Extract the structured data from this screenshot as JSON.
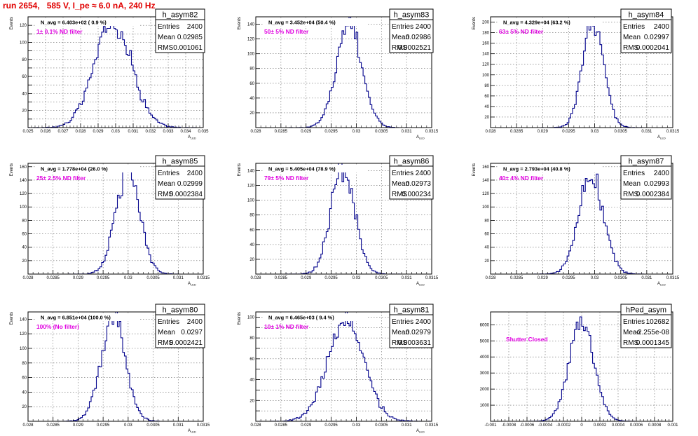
{
  "header": {
    "title": "run 2654,   585 V, I_pe ≈ 6.0 nA, 240 Hz"
  },
  "colors": {
    "title": "#e00000",
    "histogram": "#00008b",
    "filter_label": "#e000e0",
    "frame": "#000000",
    "grid": "#666666"
  },
  "chart_data": [
    {
      "type": "histogram",
      "name": "h_asym82",
      "entries": "2400",
      "mean": "0.02985",
      "rms": "0.001061",
      "navg": "N_avg = 6.403e+02 ( 0.9 %)",
      "filter": "1± 0.1% ND filter",
      "ylabel": "Events",
      "xlabel": "A_LED",
      "grid": true,
      "xlim": [
        0.025,
        0.035
      ],
      "ylim": [
        0,
        130
      ],
      "xticks": [
        0.025,
        0.026,
        0.027,
        0.028,
        0.029,
        0.03,
        0.031,
        0.032,
        0.033,
        0.034,
        0.035
      ],
      "xticklabels": [
        "0.025",
        "0.026",
        "0.027",
        "0.028",
        "0.029",
        "0.03",
        "0.031",
        "0.032",
        "0.033",
        "0.034",
        "0.035"
      ],
      "yticks": [
        0,
        10,
        20,
        30,
        40,
        50,
        60,
        70,
        80,
        90,
        100,
        110,
        120
      ],
      "yticklabels": [
        "",
        "",
        "20",
        "",
        "40",
        "",
        "60",
        "",
        "80",
        "",
        "100",
        "",
        "120"
      ],
      "peak": 125
    },
    {
      "type": "histogram",
      "name": "h_asym83",
      "entries": "2400",
      "mean": "0.02986",
      "rms": "0.0002521",
      "navg": "N_avg = 3.452e+04 (50.4 %)",
      "filter": "50± 5% ND filter",
      "ylabel": "Events",
      "xlabel": "A_LED",
      "grid": true,
      "xlim": [
        0.028,
        0.0315
      ],
      "ylim": [
        0,
        150
      ],
      "xticks": [
        0.028,
        0.0285,
        0.029,
        0.0295,
        0.03,
        0.0305,
        0.031,
        0.0315
      ],
      "xticklabels": [
        "0.028",
        "0.0285",
        "0.029",
        "0.0295",
        "0.03",
        "0.0305",
        "0.031",
        "0.0315"
      ],
      "yticks": [
        0,
        20,
        40,
        60,
        80,
        100,
        120,
        140
      ],
      "yticklabels": [
        "",
        "20",
        "40",
        "60",
        "80",
        "100",
        "120",
        "140"
      ],
      "peak": 142
    },
    {
      "type": "histogram",
      "name": "h_asym84",
      "entries": "2400",
      "mean": "0.02997",
      "rms": "0.0002041",
      "navg": "N_avg = 4.329e+04 (63.2 %)",
      "filter": "63± 5% ND filter",
      "ylabel": "Events",
      "xlabel": "A_LED",
      "grid": true,
      "xlim": [
        0.028,
        0.0315
      ],
      "ylim": [
        0,
        210
      ],
      "xticks": [
        0.028,
        0.0285,
        0.029,
        0.0295,
        0.03,
        0.0305,
        0.031,
        0.0315
      ],
      "xticklabels": [
        "0.028",
        "0.0285",
        "0.029",
        "0.0295",
        "0.03",
        "0.0305",
        "0.031",
        "0.0315"
      ],
      "yticks": [
        0,
        20,
        40,
        60,
        80,
        100,
        120,
        140,
        160,
        180,
        200
      ],
      "yticklabels": [
        "",
        "20",
        "40",
        "60",
        "80",
        "100",
        "120",
        "140",
        "160",
        "180",
        "200"
      ],
      "peak": 200
    },
    {
      "type": "histogram",
      "name": "h_asym85",
      "entries": "2400",
      "mean": "0.02999",
      "rms": "0.0002384",
      "navg": "N_avg = 1.778e+04 (26.0 %)",
      "filter": "25± 2.5% ND filter",
      "ylabel": "Events",
      "xlabel": "A_LED",
      "grid": true,
      "xlim": [
        0.028,
        0.0315
      ],
      "ylim": [
        0,
        165
      ],
      "xticks": [
        0.028,
        0.0285,
        0.029,
        0.0295,
        0.03,
        0.0305,
        0.031,
        0.0315
      ],
      "xticklabels": [
        "0.028",
        "0.0285",
        "0.029",
        "0.0295",
        "0.03",
        "0.0305",
        "0.031",
        "0.0315"
      ],
      "yticks": [
        0,
        20,
        40,
        60,
        80,
        100,
        120,
        140,
        160
      ],
      "yticklabels": [
        "",
        "20",
        "40",
        "60",
        "80",
        "100",
        "120",
        "140",
        "160"
      ],
      "peak": 155
    },
    {
      "type": "histogram",
      "name": "h_asym86",
      "entries": "2400",
      "mean": "0.02973",
      "rms": "0.000234",
      "navg": "N_avg = 5.405e+04 (78.9 %)",
      "filter": "79± 5% ND filter",
      "ylabel": "Events",
      "xlabel": "A_LED",
      "grid": true,
      "xlim": [
        0.028,
        0.0315
      ],
      "ylim": [
        0,
        150
      ],
      "xticks": [
        0.028,
        0.0285,
        0.029,
        0.0295,
        0.03,
        0.0305,
        0.031,
        0.0315
      ],
      "xticklabels": [
        "0.028",
        "0.0285",
        "0.029",
        "0.0295",
        "0.03",
        "0.0305",
        "0.031",
        "0.0315"
      ],
      "yticks": [
        0,
        20,
        40,
        60,
        80,
        100,
        120,
        140
      ],
      "yticklabels": [
        "",
        "20",
        "40",
        "60",
        "80",
        "100",
        "120",
        "140"
      ],
      "peak": 146
    },
    {
      "type": "histogram",
      "name": "h_asym87",
      "entries": "2400",
      "mean": "0.02993",
      "rms": "0.0002384",
      "navg": "N_avg = 2.793e+04 (40.8 %)",
      "filter": "40± 4% ND filter",
      "ylabel": "Events",
      "xlabel": "A_LED",
      "grid": true,
      "xlim": [
        0.028,
        0.0315
      ],
      "ylim": [
        0,
        165
      ],
      "xticks": [
        0.028,
        0.0285,
        0.029,
        0.0295,
        0.03,
        0.0305,
        0.031,
        0.0315
      ],
      "xticklabels": [
        "0.028",
        "0.0285",
        "0.029",
        "0.0295",
        "0.03",
        "0.0305",
        "0.031",
        "0.0315"
      ],
      "yticks": [
        0,
        20,
        40,
        60,
        80,
        100,
        120,
        140,
        160
      ],
      "yticklabels": [
        "",
        "20",
        "40",
        "60",
        "80",
        "100",
        "120",
        "140",
        "160"
      ],
      "peak": 148
    },
    {
      "type": "histogram",
      "name": "h_asym80",
      "entries": "2400",
      "mean": "0.0297",
      "rms": "0.0002421",
      "navg": "N_avg = 6.851e+04 (100.0 %)",
      "filter": "100% (No filter)",
      "ylabel": "Events",
      "xlabel": "A_LED",
      "grid": true,
      "xlim": [
        0.028,
        0.0315
      ],
      "ylim": [
        0,
        150
      ],
      "xticks": [
        0.028,
        0.0285,
        0.029,
        0.0295,
        0.03,
        0.0305,
        0.031,
        0.0315
      ],
      "xticklabels": [
        "0.028",
        "0.0285",
        "0.029",
        "0.0295",
        "0.03",
        "0.0305",
        "0.031",
        "0.0315"
      ],
      "yticks": [
        0,
        20,
        40,
        60,
        80,
        100,
        120,
        140
      ],
      "yticklabels": [
        "",
        "20",
        "40",
        "60",
        "80",
        "100",
        "120",
        "140"
      ],
      "peak": 145
    },
    {
      "type": "histogram",
      "name": "h_asym81",
      "entries": "2400",
      "mean": "0.02979",
      "rms": "0.0003631",
      "navg": "N_avg = 6.465e+03 ( 9.4 %)",
      "filter": "10± 1% ND filter",
      "ylabel": "Events",
      "xlabel": "A_LED",
      "grid": true,
      "xlim": [
        0.028,
        0.0315
      ],
      "ylim": [
        0,
        105
      ],
      "xticks": [
        0.028,
        0.0285,
        0.029,
        0.0295,
        0.03,
        0.0305,
        0.031,
        0.0315
      ],
      "xticklabels": [
        "0.028",
        "0.0285",
        "0.029",
        "0.0295",
        "0.03",
        "0.0305",
        "0.031",
        "0.0315"
      ],
      "yticks": [
        0,
        10,
        20,
        30,
        40,
        50,
        60,
        70,
        80,
        90,
        100
      ],
      "yticklabels": [
        "",
        "",
        "20",
        "",
        "40",
        "",
        "60",
        "",
        "80",
        "",
        "100"
      ],
      "peak": 98
    },
    {
      "type": "histogram",
      "name": "hPed_asym",
      "entries": "102682",
      "mean": "-2.255e-08",
      "rms": "0.0001345",
      "navg": "",
      "filter": "Shutter Closed",
      "ylabel": "",
      "xlabel": "",
      "grid": true,
      "xlim": [
        -0.001,
        0.001
      ],
      "ylim": [
        0,
        6800
      ],
      "xticks": [
        -0.001,
        -0.0008,
        -0.0006,
        -0.0004,
        -0.0002,
        0,
        0.0002,
        0.0004,
        0.0006,
        0.0008,
        0.001
      ],
      "xticklabels": [
        "-0.001",
        "-0.0008",
        "-0.0006",
        "-0.0004",
        "-0.0002",
        "0",
        "0.0002",
        "0.0004",
        "0.0006",
        "0.0008",
        "0.001"
      ],
      "yticks": [
        0,
        1000,
        2000,
        3000,
        4000,
        5000,
        6000
      ],
      "yticklabels": [
        "",
        "1000",
        "2000",
        "3000",
        "4000",
        "5000",
        "6000"
      ],
      "peak": 6300
    }
  ]
}
